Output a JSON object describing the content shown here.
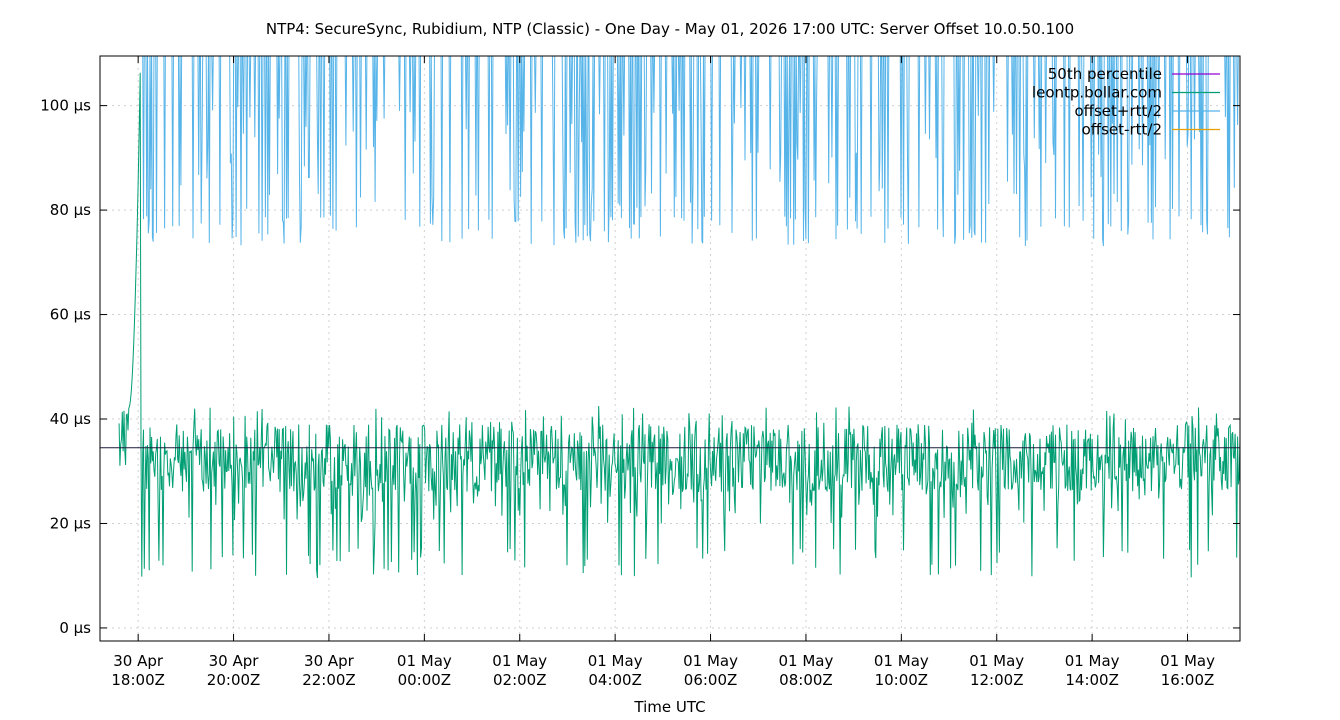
{
  "chart_data": {
    "type": "line",
    "title": "NTP4: SecureSync, Rubidium, NTP (Classic) - One Day - May 01, 2026 17:00 UTC: Server Offset 10.0.50.100",
    "xlabel": "Time UTC",
    "ylabel": "",
    "x_range_hours": [
      -0.4,
      23.5
    ],
    "ylim": [
      -2.5,
      109.5
    ],
    "y_unit": "µs",
    "y_ticks": [
      {
        "value": 0,
        "label": "0 µs"
      },
      {
        "value": 20,
        "label": "20 µs"
      },
      {
        "value": 40,
        "label": "40 µs"
      },
      {
        "value": 60,
        "label": "60 µs"
      },
      {
        "value": 80,
        "label": "80 µs"
      },
      {
        "value": 100,
        "label": "100 µs"
      }
    ],
    "x_ticks": [
      {
        "value": 0.4,
        "line1": "30 Apr",
        "line2": "18:00Z"
      },
      {
        "value": 2.4,
        "line1": "30 Apr",
        "line2": "20:00Z"
      },
      {
        "value": 4.4,
        "line1": "30 Apr",
        "line2": "22:00Z"
      },
      {
        "value": 6.4,
        "line1": "01 May",
        "line2": "00:00Z"
      },
      {
        "value": 8.4,
        "line1": "01 May",
        "line2": "02:00Z"
      },
      {
        "value": 10.4,
        "line1": "01 May",
        "line2": "04:00Z"
      },
      {
        "value": 12.4,
        "line1": "01 May",
        "line2": "06:00Z"
      },
      {
        "value": 14.4,
        "line1": "01 May",
        "line2": "08:00Z"
      },
      {
        "value": 16.4,
        "line1": "01 May",
        "line2": "10:00Z"
      },
      {
        "value": 18.4,
        "line1": "01 May",
        "line2": "12:00Z"
      },
      {
        "value": 20.4,
        "line1": "01 May",
        "line2": "14:00Z"
      },
      {
        "value": 22.4,
        "line1": "01 May",
        "line2": "16:00Z"
      }
    ],
    "grid": true,
    "legend_position": "top-right",
    "series": [
      {
        "name": "50th percentile",
        "color": "#9400d3",
        "kind": "hline",
        "value": 34.5
      },
      {
        "name": "leontp.bollar.com",
        "color": "#009e73",
        "kind": "offset",
        "typical_range": [
          26,
          39
        ],
        "dip_min": 9.5,
        "spike_max": 42.5,
        "initial_ramp": {
          "from_hour": 0.2,
          "to_hour": 0.45,
          "from": 42,
          "to": 110
        }
      },
      {
        "name": "offset+rtt/2",
        "color": "#56b4e9",
        "kind": "upper",
        "typical_low": 73,
        "clipped_above": 109.5
      },
      {
        "name": "offset-rtt/2",
        "color": "#e69f00",
        "kind": "lower"
      }
    ]
  }
}
